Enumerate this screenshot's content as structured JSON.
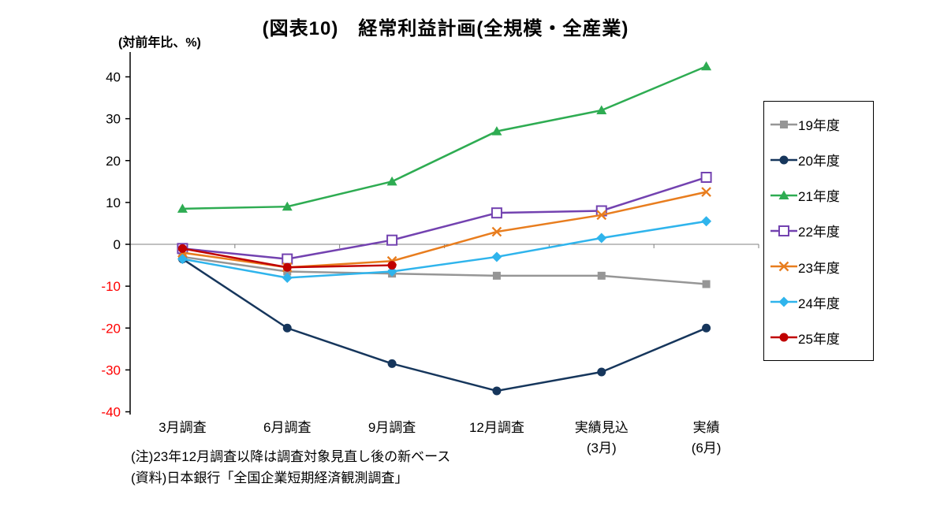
{
  "title": "(図表10)　経常利益計画(全規模・全産業)",
  "y_axis_unit_label": "(対前年比、%)",
  "notes": [
    "(注)23年12月調査以降は調査対象見直し後の新ベース",
    "(資料)日本銀行「全国企業短期経済観測調査」"
  ],
  "colors": {
    "axis": "#000000",
    "zero_line": "#808080",
    "positive_tick_label": "#000000",
    "negative_tick_label": "#FF0000"
  },
  "chart_data": {
    "type": "line",
    "title": "(図表10)　経常利益計画(全規模・全産業)",
    "ylabel": "(対前年比、%)",
    "ylim": [
      -40,
      40
    ],
    "ytick_step": 10,
    "grid": false,
    "legend_position": "right",
    "categories": [
      "3月調査",
      "6月調査",
      "9月調査",
      "12月調査",
      "実績見込",
      "実績"
    ],
    "category_sublabels": [
      "",
      "",
      "",
      "",
      "(3月)",
      "(6月)"
    ],
    "series": [
      {
        "name": "19年度",
        "marker": "square",
        "color": "#969696",
        "values": [
          -3,
          -6.5,
          -7,
          -7.5,
          -7.5,
          -9.5
        ]
      },
      {
        "name": "20年度",
        "marker": "circle",
        "color": "#16365C",
        "values": [
          -3.5,
          -20,
          -28.5,
          -35,
          -30.5,
          -20
        ]
      },
      {
        "name": "21年度",
        "marker": "triangle",
        "color": "#2EAC52",
        "values": [
          8.5,
          9,
          15,
          27,
          32,
          42.5
        ]
      },
      {
        "name": "22年度",
        "marker": "open-square",
        "color": "#7342B0",
        "values": [
          -1,
          -3.5,
          1,
          7.5,
          8,
          16
        ]
      },
      {
        "name": "23年度",
        "marker": "x",
        "color": "#E87D1E",
        "values": [
          -2,
          -5.5,
          -4,
          3,
          7,
          12.5
        ]
      },
      {
        "name": "24年度",
        "marker": "diamond",
        "color": "#2FB4EC",
        "values": [
          -3.5,
          -8,
          -6.5,
          -3,
          1.5,
          5.5
        ]
      },
      {
        "name": "25年度",
        "marker": "circle",
        "color": "#C00000",
        "values": [
          -1,
          -5.5,
          -5,
          null,
          null,
          null
        ]
      }
    ]
  }
}
